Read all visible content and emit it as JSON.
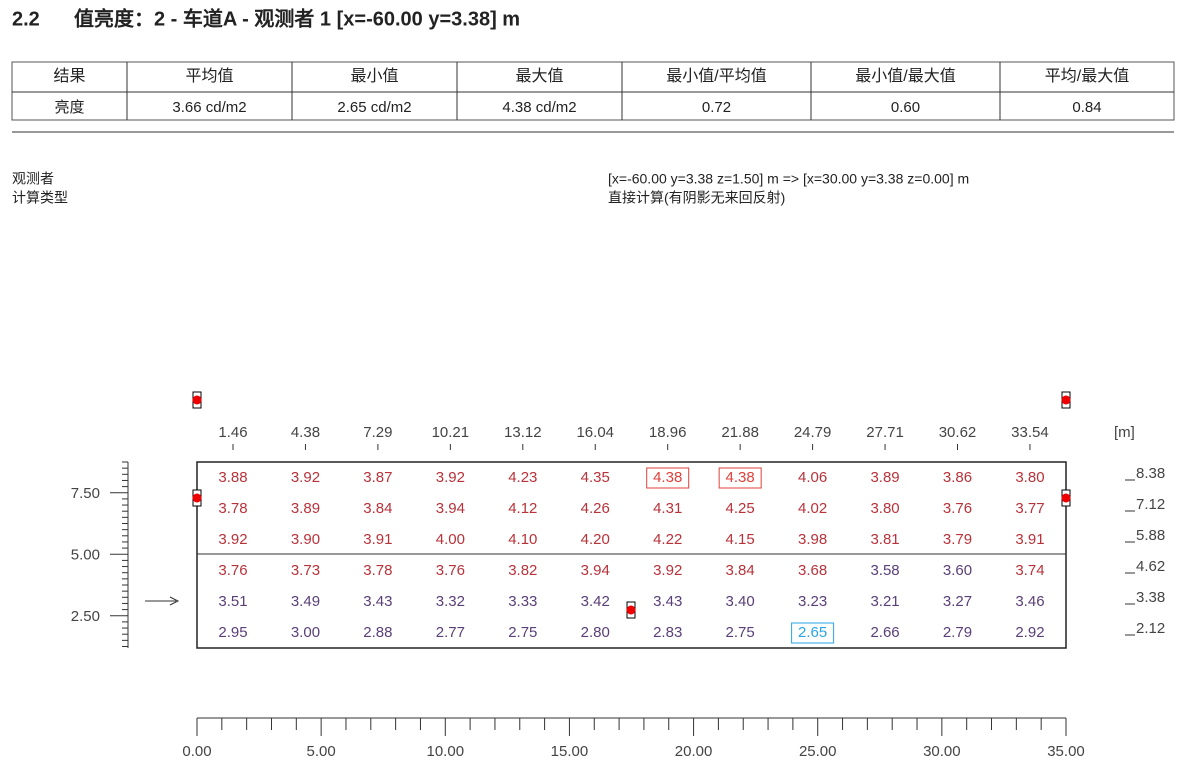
{
  "header": {
    "number": "2.2",
    "title": "值亮度：2 - 车道A - 观测者 1 [x=-60.00 y=3.38] m"
  },
  "summary_table": {
    "columns": [
      "结果",
      "平均值",
      "最小值",
      "最大值",
      "最小值/平均值",
      "最小值/最大值",
      "平均/最大值"
    ],
    "rows": [
      [
        "亮度",
        "3.66 cd/m2",
        "2.65 cd/m2",
        "4.38 cd/m2",
        "0.72",
        "0.60",
        "0.84"
      ]
    ]
  },
  "info": {
    "labels": [
      "观测者",
      "计算类型"
    ],
    "values": [
      "[x=-60.00 y=3.38 z=1.50] m => [x=30.00 y=3.38 z=0.00] m",
      "直接计算(有阴影无来回反射)"
    ]
  },
  "grid": {
    "x_labels": [
      "1.46",
      "4.38",
      "7.29",
      "10.21",
      "13.12",
      "16.04",
      "18.96",
      "21.88",
      "24.79",
      "27.71",
      "30.62",
      "33.54"
    ],
    "unit": "[m]",
    "y_labels": [
      "8.38",
      "7.12",
      "5.88",
      "4.62",
      "3.38",
      "2.12"
    ],
    "left_ticks": [
      "7.50",
      "5.00",
      "2.50"
    ],
    "bottom_ticks": [
      "0.00",
      "5.00",
      "10.00",
      "15.00",
      "20.00",
      "25.00",
      "30.00",
      "35.00"
    ],
    "rows": [
      [
        "3.88",
        "3.92",
        "3.87",
        "3.92",
        "4.23",
        "4.35",
        "4.38",
        "4.38",
        "4.06",
        "3.89",
        "3.86",
        "3.80"
      ],
      [
        "3.78",
        "3.89",
        "3.84",
        "3.94",
        "4.12",
        "4.26",
        "4.31",
        "4.25",
        "4.02",
        "3.80",
        "3.76",
        "3.77"
      ],
      [
        "3.92",
        "3.90",
        "3.91",
        "4.00",
        "4.10",
        "4.20",
        "4.22",
        "4.15",
        "3.98",
        "3.81",
        "3.79",
        "3.91"
      ],
      [
        "3.76",
        "3.73",
        "3.78",
        "3.76",
        "3.82",
        "3.94",
        "3.92",
        "3.84",
        "3.68",
        "3.58",
        "3.60",
        "3.74"
      ],
      [
        "3.51",
        "3.49",
        "3.43",
        "3.32",
        "3.33",
        "3.42",
        "3.43",
        "3.40",
        "3.23",
        "3.21",
        "3.27",
        "3.46"
      ],
      [
        "2.95",
        "3.00",
        "2.88",
        "2.77",
        "2.75",
        "2.80",
        "2.83",
        "2.75",
        "2.65",
        "2.66",
        "2.79",
        "2.92"
      ]
    ]
  }
}
